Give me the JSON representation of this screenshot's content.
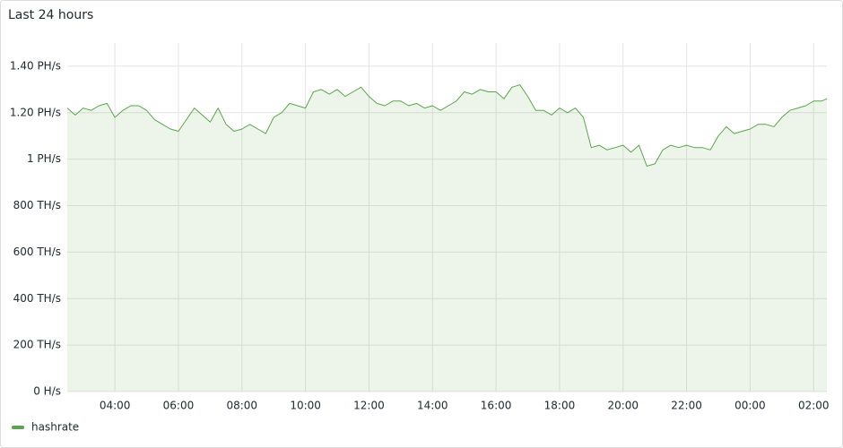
{
  "chart_data": {
    "type": "area",
    "title": "Last 24 hours",
    "x": [
      "02:30",
      "02:45",
      "03:00",
      "03:15",
      "03:30",
      "03:45",
      "04:00",
      "04:15",
      "04:30",
      "04:45",
      "05:00",
      "05:15",
      "05:30",
      "05:45",
      "06:00",
      "06:15",
      "06:30",
      "06:45",
      "07:00",
      "07:15",
      "07:30",
      "07:45",
      "08:00",
      "08:15",
      "08:30",
      "08:45",
      "09:00",
      "09:15",
      "09:30",
      "09:45",
      "10:00",
      "10:15",
      "10:30",
      "10:45",
      "11:00",
      "11:15",
      "11:30",
      "11:45",
      "12:00",
      "12:15",
      "12:30",
      "12:45",
      "13:00",
      "13:15",
      "13:30",
      "13:45",
      "14:00",
      "14:15",
      "14:30",
      "14:45",
      "15:00",
      "15:15",
      "15:30",
      "15:45",
      "16:00",
      "16:15",
      "16:30",
      "16:45",
      "17:00",
      "17:15",
      "17:30",
      "17:45",
      "18:00",
      "18:15",
      "18:30",
      "18:45",
      "19:00",
      "19:15",
      "19:30",
      "19:45",
      "20:00",
      "20:15",
      "20:30",
      "20:45",
      "21:00",
      "21:15",
      "21:30",
      "21:45",
      "22:00",
      "22:15",
      "22:30",
      "22:45",
      "23:00",
      "23:15",
      "23:30",
      "23:45",
      "00:00",
      "00:15",
      "00:30",
      "00:45",
      "01:00",
      "01:15",
      "01:30",
      "01:45",
      "02:00",
      "02:15",
      "02:25"
    ],
    "series": [
      {
        "name": "hashrate",
        "color": "#5aa64b",
        "values": [
          1220,
          1190,
          1220,
          1210,
          1230,
          1240,
          1180,
          1210,
          1230,
          1230,
          1210,
          1170,
          1150,
          1130,
          1120,
          1170,
          1220,
          1190,
          1160,
          1220,
          1150,
          1120,
          1130,
          1150,
          1130,
          1110,
          1180,
          1200,
          1240,
          1230,
          1220,
          1290,
          1300,
          1280,
          1300,
          1270,
          1290,
          1310,
          1270,
          1240,
          1230,
          1250,
          1250,
          1230,
          1240,
          1220,
          1230,
          1210,
          1230,
          1250,
          1290,
          1280,
          1300,
          1290,
          1290,
          1260,
          1310,
          1320,
          1270,
          1210,
          1210,
          1190,
          1220,
          1200,
          1220,
          1180,
          1050,
          1060,
          1040,
          1050,
          1060,
          1030,
          1060,
          970,
          980,
          1040,
          1060,
          1050,
          1060,
          1050,
          1050,
          1040,
          1100,
          1140,
          1110,
          1120,
          1130,
          1150,
          1150,
          1140,
          1180,
          1210,
          1220,
          1230,
          1250,
          1250,
          1260
        ]
      }
    ],
    "xlim": [
      "02:30",
      "02:25"
    ],
    "xticks": [
      "04:00",
      "06:00",
      "08:00",
      "10:00",
      "12:00",
      "14:00",
      "16:00",
      "18:00",
      "20:00",
      "22:00",
      "00:00",
      "02:00"
    ],
    "ylim": [
      0,
      1500
    ],
    "yticks": [
      {
        "value": 0,
        "label": "0 H/s"
      },
      {
        "value": 200,
        "label": "200 TH/s"
      },
      {
        "value": 400,
        "label": "400 TH/s"
      },
      {
        "value": 600,
        "label": "600 TH/s"
      },
      {
        "value": 800,
        "label": "800 TH/s"
      },
      {
        "value": 1000,
        "label": "1 PH/s"
      },
      {
        "value": 1200,
        "label": "1.20 PH/s"
      },
      {
        "value": 1400,
        "label": "1.40 PH/s"
      }
    ],
    "grid": true
  }
}
